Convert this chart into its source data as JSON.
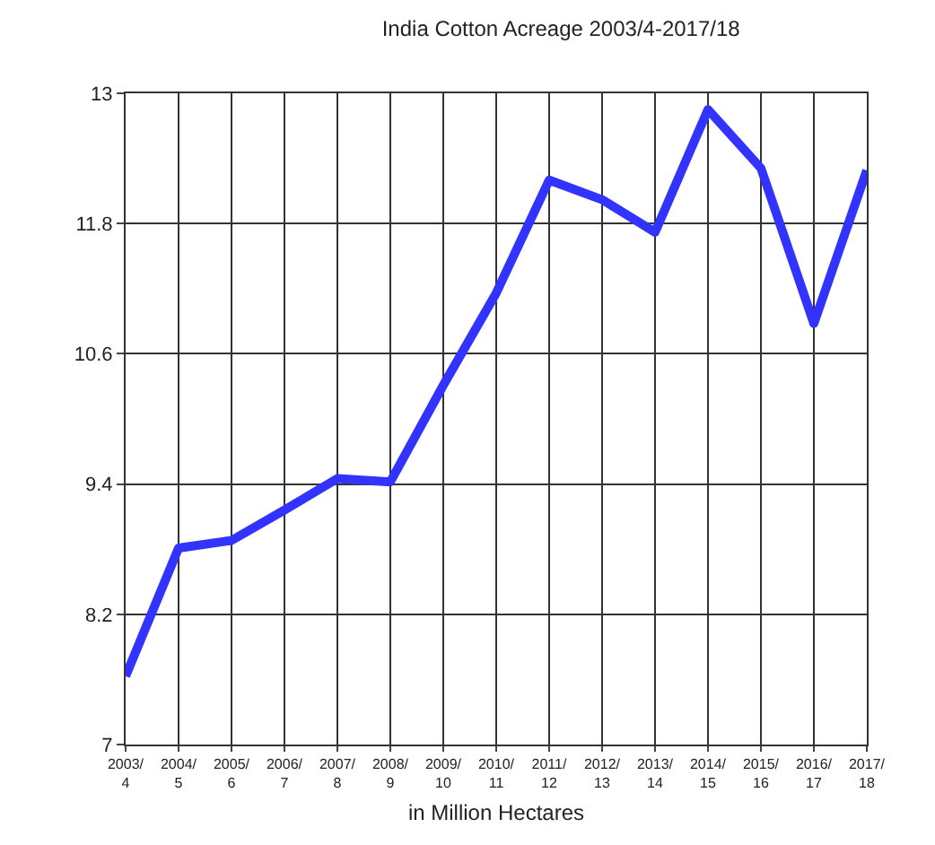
{
  "chart_data": {
    "type": "line",
    "title": "India Cotton Acreage 2003/4-2017/18",
    "xlabel": "in Million Hectares",
    "categories": [
      "2003/4",
      "2004/5",
      "2005/6",
      "2006/7",
      "2007/8",
      "2008/9",
      "2009/10",
      "2010/11",
      "2011/12",
      "2012/13",
      "2013/14",
      "2014/15",
      "2015/16",
      "2016/17",
      "2017/18"
    ],
    "series": [
      {
        "color": "#3333ff",
        "values": [
          7.63,
          8.81,
          8.88,
          9.16,
          9.45,
          9.42,
          10.31,
          11.16,
          12.2,
          12.02,
          11.72,
          12.85,
          12.31,
          10.88,
          12.29
        ]
      }
    ],
    "ylim": [
      7,
      13
    ],
    "yticks": [
      7,
      8.2,
      9.4,
      10.6,
      11.8,
      13
    ],
    "grid": true,
    "marker": "none",
    "line_style": "solid"
  }
}
